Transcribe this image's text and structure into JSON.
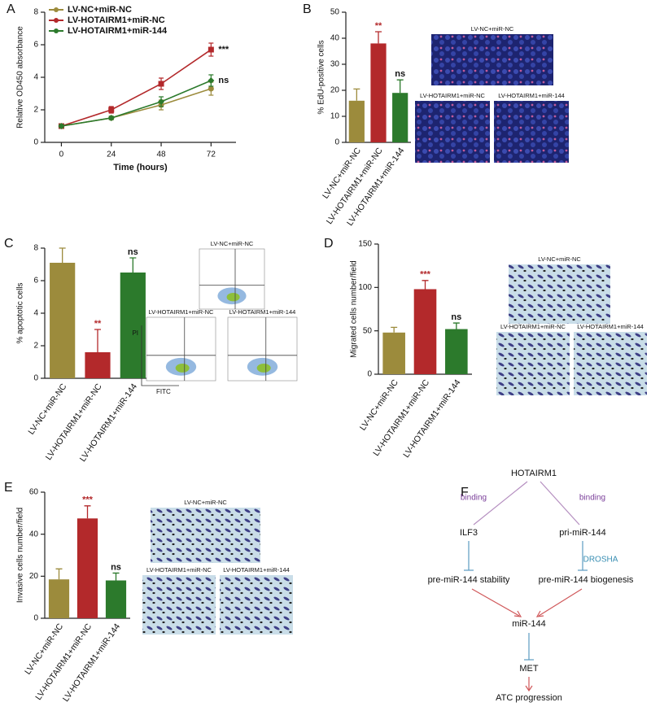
{
  "chart_data": [
    {
      "panel_label": "A",
      "type": "line",
      "ylabel": "Relative OD450 absorbance",
      "xlabel": "Time (hours)",
      "x": [
        0,
        24,
        48,
        72
      ],
      "xlim": [
        -8,
        84
      ],
      "xticks": [
        0,
        24,
        48,
        72
      ],
      "ylim": [
        0,
        8
      ],
      "yticks": [
        0,
        2,
        4,
        6,
        8
      ],
      "series": [
        {
          "name": "LV-NC+miR-NC",
          "color": "#9c8b3c",
          "values": [
            1,
            1.5,
            2.3,
            3.3
          ],
          "errors": [
            0.1,
            0.1,
            0.3,
            0.4
          ]
        },
        {
          "name": "LV-HOTAIRM1+miR-NC",
          "color": "#b3292b",
          "values": [
            1,
            2.0,
            3.6,
            5.7
          ],
          "errors": [
            0.1,
            0.2,
            0.35,
            0.4
          ],
          "annotation": "***"
        },
        {
          "name": "LV-HOTAIRM1+miR-144",
          "color": "#2c7a2c",
          "values": [
            1,
            1.5,
            2.5,
            3.8
          ],
          "errors": [
            0.1,
            0.1,
            0.3,
            0.35
          ],
          "annotation": "ns"
        }
      ]
    },
    {
      "panel_label": "B",
      "type": "bar",
      "ylabel": "% EdU-positive cells",
      "categories": [
        "LV-NC+miR-NC",
        "LV-HOTAIRM1+miR-NC",
        "LV-HOTAIRM1+miR-144"
      ],
      "values": [
        16,
        38,
        19
      ],
      "errors": [
        4.5,
        4.5,
        5
      ],
      "colors": [
        "#9c8b3c",
        "#b3292b",
        "#2c7a2c"
      ],
      "annotations": [
        null,
        "**",
        "ns"
      ],
      "ylim": [
        0,
        50
      ],
      "yticks": [
        0,
        10,
        20,
        30,
        40,
        50
      ],
      "image_labels": [
        "LV-NC+miR-NC",
        "LV-HOTAIRM1+miR-NC",
        "LV-HOTAIRM1+miR-144"
      ]
    },
    {
      "panel_label": "C",
      "type": "bar",
      "ylabel": "% apoptotic cells",
      "categories": [
        "LV-NC+miR-NC",
        "LV-HOTAIRM1+miR-NC",
        "LV-HOTAIRM1+miR-144"
      ],
      "values": [
        7.1,
        1.6,
        6.5
      ],
      "errors": [
        0.9,
        1.4,
        0.9
      ],
      "colors": [
        "#9c8b3c",
        "#b3292b",
        "#2c7a2c"
      ],
      "annotations": [
        null,
        "**",
        "ns"
      ],
      "ylim": [
        0,
        8
      ],
      "yticks": [
        0,
        2,
        4,
        6,
        8
      ],
      "image_labels": [
        "LV-NC+miR-NC",
        "LV-HOTAIRM1+miR-NC",
        "LV-HOTAIRM1+miR-144"
      ],
      "image_axis_labels": {
        "y": "PI",
        "x": "FITC"
      }
    },
    {
      "panel_label": "D",
      "type": "bar",
      "ylabel": "Migrated cells number/field",
      "categories": [
        "LV-NC+miR-NC",
        "LV-HOTAIRM1+miR-NC",
        "LV-HOTAIRM1+miR-144"
      ],
      "values": [
        48,
        98,
        52
      ],
      "errors": [
        6,
        10,
        7
      ],
      "colors": [
        "#9c8b3c",
        "#b3292b",
        "#2c7a2c"
      ],
      "annotations": [
        null,
        "***",
        "ns"
      ],
      "ylim": [
        0,
        150
      ],
      "yticks": [
        0,
        50,
        100,
        150
      ],
      "image_labels": [
        "LV-NC+miR-NC",
        "LV-HOTAIRM1+miR-NC",
        "LV-HOTAIRM1+miR-144"
      ]
    },
    {
      "panel_label": "E",
      "type": "bar",
      "ylabel": "Invasive cells number/field",
      "categories": [
        "LV-NC+miR-NC",
        "LV-HOTAIRM1+miR-NC",
        "LV-HOTAIRM1+miR-144"
      ],
      "values": [
        18.5,
        47.5,
        18
      ],
      "errors": [
        5,
        6,
        3.5
      ],
      "colors": [
        "#9c8b3c",
        "#b3292b",
        "#2c7a2c"
      ],
      "annotations": [
        null,
        "***",
        "ns"
      ],
      "ylim": [
        0,
        60
      ],
      "yticks": [
        0,
        20,
        40,
        60
      ],
      "image_labels": [
        "LV-NC+miR-NC",
        "LV-HOTAIRM1+miR-NC",
        "LV-HOTAIRM1+miR-144"
      ]
    }
  ],
  "diagram": {
    "panel_label": "F",
    "nodes": [
      "HOTAIRM1",
      "ILF3",
      "pri-miR-144",
      "pre-miR-144 stability",
      "pre-miR-144 biogenesis",
      "miR-144",
      "MET",
      "ATC progression"
    ],
    "edge_labels": [
      "binding",
      "binding",
      "DROSHA"
    ]
  }
}
